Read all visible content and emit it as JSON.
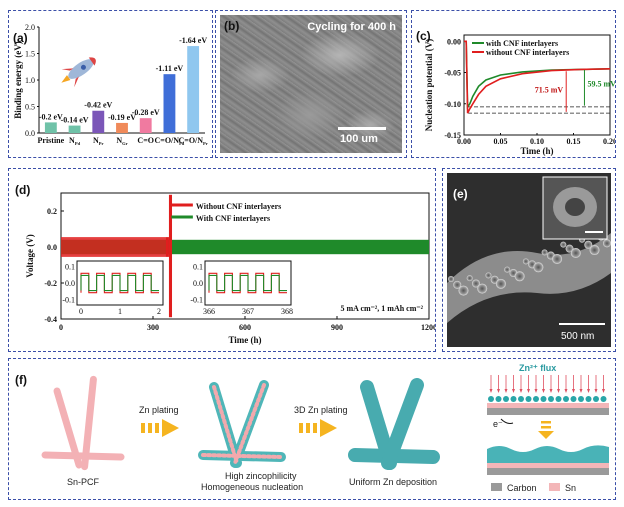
{
  "figure": {
    "panel_a": {
      "label": "(a)",
      "chart_data": {
        "type": "bar",
        "ylabel": "Binding energy (eV)",
        "ylim": [
          0,
          2.0
        ],
        "yticks": [
          "0.0",
          "0.5",
          "1.0",
          "1.5",
          "2.0"
        ],
        "categories": [
          "Pristine",
          "N_Pd",
          "N_Pr",
          "N_Gr",
          "C=O",
          "C=O/N_Pd",
          "C=O/N_Pr"
        ],
        "category_labels": [
          {
            "main": "Pristine",
            "sub": ""
          },
          {
            "main": "N",
            "sub": "Pd"
          },
          {
            "main": "N",
            "sub": "Pr"
          },
          {
            "main": "N",
            "sub": "Gr"
          },
          {
            "main": "C=O",
            "sub": ""
          },
          {
            "main": "C=O/N",
            "sub": "Pd"
          },
          {
            "main": "C=O/N",
            "sub": "Pr"
          }
        ],
        "values": [
          0.2,
          0.14,
          0.42,
          0.19,
          0.28,
          1.11,
          1.64
        ],
        "value_labels": [
          "-0.2 eV",
          "-0.14 eV",
          "-0.42 eV",
          "-0.19 eV",
          "-0.28 eV",
          "-1.11 eV",
          "-1.64 eV"
        ],
        "colors": [
          "#6fc2a8",
          "#6fc2a8",
          "#7b56b8",
          "#f08a5a",
          "#f07aa0",
          "#3f6ed8",
          "#8fc7ef"
        ]
      }
    },
    "panel_b": {
      "label": "(b)",
      "caption": "Cycling for 400 h",
      "scale": "100 um"
    },
    "panel_c": {
      "label": "(c)",
      "chart_data": {
        "type": "line",
        "xlabel": "Time (h)",
        "ylabel": "Nucleation potential (V)",
        "xlim": [
          0,
          0.2
        ],
        "ylim": [
          -0.15,
          0.01
        ],
        "xticks": [
          "0.00",
          "0.05",
          "0.10",
          "0.15",
          "0.20"
        ],
        "yticks": [
          "0.00",
          "-0.05",
          "-0.10",
          "-0.15"
        ],
        "series": [
          {
            "name": "with CNF interlayers",
            "color": "#1f8a2a",
            "x": [
              0,
              0.003,
              0.005,
              0.008,
              0.012,
              0.02,
              0.03,
              0.05,
              0.08,
              0.12,
              0.16,
              0.2
            ],
            "y": [
              0,
              0,
              -0.105,
              -0.1,
              -0.088,
              -0.072,
              -0.062,
              -0.054,
              -0.049,
              -0.046,
              -0.045,
              -0.044
            ]
          },
          {
            "name": "without CNF interlayers",
            "color": "#e01e1e",
            "x": [
              0,
              0.003,
              0.005,
              0.008,
              0.012,
              0.02,
              0.03,
              0.05,
              0.08,
              0.12,
              0.16,
              0.2
            ],
            "y": [
              0,
              0,
              -0.115,
              -0.108,
              -0.1,
              -0.085,
              -0.072,
              -0.06,
              -0.052,
              -0.047,
              -0.045,
              -0.044
            ]
          }
        ],
        "annotations": [
          "71.5 mV",
          "59.5 mV"
        ]
      }
    },
    "panel_d": {
      "label": "(d)",
      "chart_data": {
        "type": "line",
        "xlabel": "Time (h)",
        "ylabel": "Voltage (V)",
        "xlim": [
          0,
          1200
        ],
        "ylim": [
          -0.4,
          0.3
        ],
        "xticks": [
          "0",
          "300",
          "600",
          "900",
          "1200"
        ],
        "yticks": [
          "0.2",
          "0.0",
          "-0.2",
          "-0.4"
        ],
        "series": [
          {
            "name": "Without CNF interlayers",
            "color": "#e01e1e"
          },
          {
            "name": "With CNF interlayers",
            "color": "#1f8a2a"
          }
        ],
        "condition": "5 mA cm⁻², 1 mAh cm⁻²",
        "inset_left": {
          "xticks": [
            "0",
            "1",
            "2"
          ],
          "yticks": [
            "0.1",
            "0.0",
            "-0.1"
          ]
        },
        "inset_right": {
          "xticks": [
            "366",
            "367",
            "368"
          ],
          "yticks": [
            "0.1",
            "0.0",
            "-0.1"
          ]
        }
      }
    },
    "panel_e": {
      "label": "(e)",
      "scale": "500 nm"
    },
    "panel_f": {
      "label": "(f)",
      "sn_pcf": "Sn-PCF",
      "zn_plating": "Zn plating",
      "zn3d_plating": "3D Zn plating",
      "high_zinc": "High zincophilicity",
      "homogeneous": "Homogeneous nucleation",
      "uniform": "Uniform Zn deposition",
      "zn_flux": "Zn²⁺ flux",
      "electron": "e⁻",
      "legend_carbon": "Carbon",
      "legend_sn": "Sn"
    }
  }
}
